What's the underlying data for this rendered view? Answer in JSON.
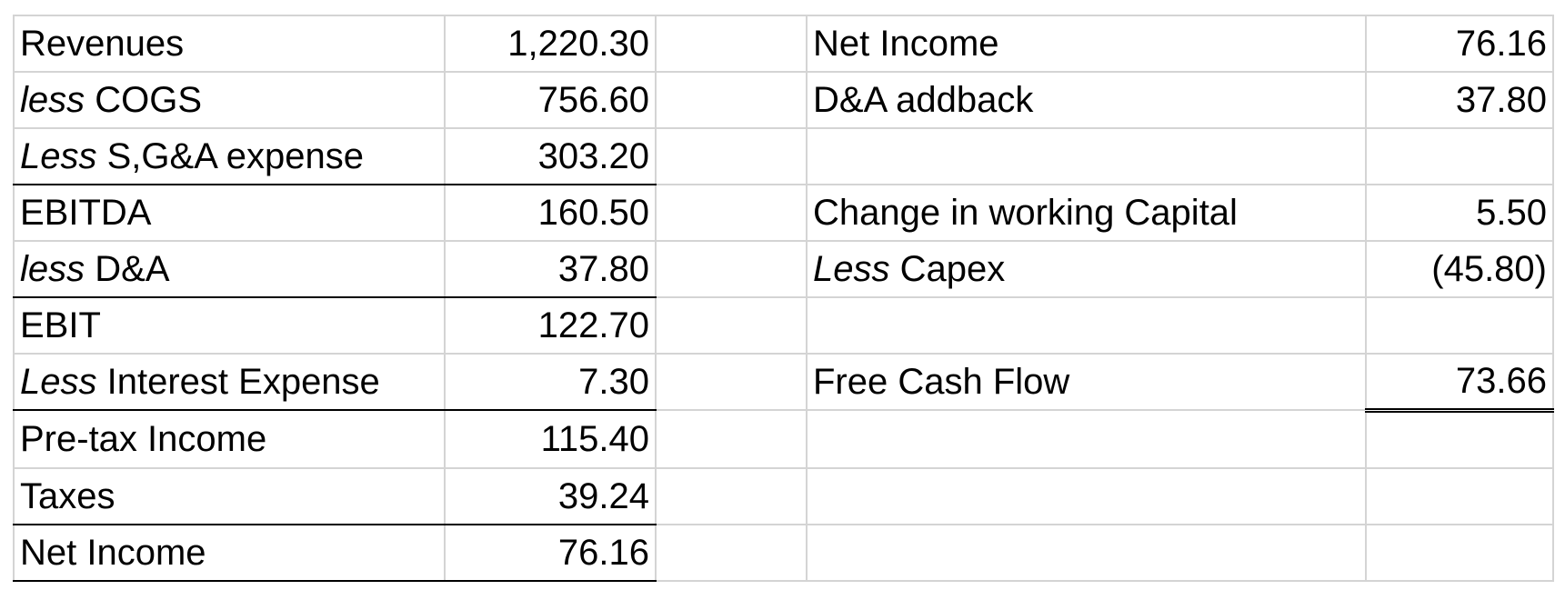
{
  "income_statement": {
    "rows": [
      {
        "prefix": "",
        "label": "Revenues",
        "value": "1,220.30"
      },
      {
        "prefix": "less",
        "label": "COGS",
        "value": "756.60"
      },
      {
        "prefix": "Less",
        "label": "S,G&A expense",
        "value": "303.20"
      },
      {
        "prefix": "",
        "label": "EBITDA",
        "value": "160.50"
      },
      {
        "prefix": "less",
        "label": "D&A",
        "value": "37.80"
      },
      {
        "prefix": "",
        "label": "EBIT",
        "value": "122.70"
      },
      {
        "prefix": "Less",
        "label": "Interest Expense",
        "value": "7.30"
      },
      {
        "prefix": "",
        "label": "Pre-tax Income",
        "value": "115.40"
      },
      {
        "prefix": "",
        "label": "Taxes",
        "value": "39.24"
      },
      {
        "prefix": "",
        "label": "Net Income",
        "value": "76.16"
      }
    ]
  },
  "cash_flow": {
    "rows": [
      {
        "prefix": "",
        "label": "Net Income",
        "value": "76.16"
      },
      {
        "prefix": "",
        "label": "D&A addback",
        "value": "37.80"
      },
      {
        "prefix": "",
        "label": "",
        "value": ""
      },
      {
        "prefix": "",
        "label": "Change in working Capital",
        "value": "5.50"
      },
      {
        "prefix": "Less",
        "label": "Capex",
        "value": "(45.80)"
      },
      {
        "prefix": "",
        "label": "",
        "value": ""
      },
      {
        "prefix": "",
        "label": "Free Cash Flow",
        "value": "73.66"
      },
      {
        "prefix": "",
        "label": "",
        "value": ""
      },
      {
        "prefix": "",
        "label": "",
        "value": ""
      },
      {
        "prefix": "",
        "label": "",
        "value": ""
      }
    ]
  }
}
